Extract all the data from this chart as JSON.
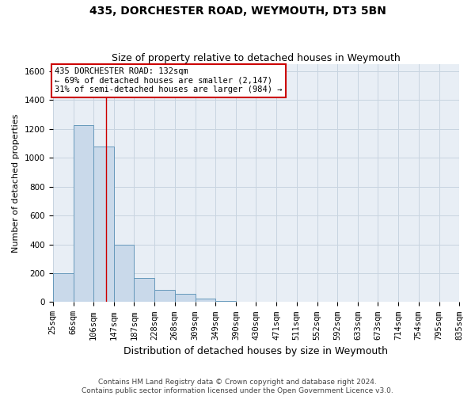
{
  "title": "435, DORCHESTER ROAD, WEYMOUTH, DT3 5BN",
  "subtitle": "Size of property relative to detached houses in Weymouth",
  "xlabel": "Distribution of detached houses by size in Weymouth",
  "ylabel": "Number of detached properties",
  "footer1": "Contains HM Land Registry data © Crown copyright and database right 2024.",
  "footer2": "Contains public sector information licensed under the Open Government Licence v3.0.",
  "bin_edges": [
    25,
    66,
    106,
    147,
    187,
    228,
    268,
    309,
    349,
    390,
    430,
    471,
    511,
    552,
    592,
    633,
    673,
    714,
    754,
    795,
    835
  ],
  "bin_labels": [
    "25sqm",
    "66sqm",
    "106sqm",
    "147sqm",
    "187sqm",
    "228sqm",
    "268sqm",
    "309sqm",
    "349sqm",
    "390sqm",
    "430sqm",
    "471sqm",
    "511sqm",
    "552sqm",
    "592sqm",
    "633sqm",
    "673sqm",
    "714sqm",
    "754sqm",
    "795sqm",
    "835sqm"
  ],
  "bar_values": [
    200,
    1225,
    1075,
    400,
    165,
    85,
    55,
    25,
    10,
    0,
    0,
    0,
    0,
    0,
    0,
    0,
    0,
    0,
    0,
    0
  ],
  "ylim": [
    0,
    1650
  ],
  "yticks": [
    0,
    200,
    400,
    600,
    800,
    1000,
    1200,
    1400,
    1600
  ],
  "bar_color": "#c9d9ea",
  "bar_edge_color": "#6699bb",
  "property_size": 132,
  "annotation_text": "435 DORCHESTER ROAD: 132sqm\n← 69% of detached houses are smaller (2,147)\n31% of semi-detached houses are larger (984) →",
  "annotation_box_color": "#cc0000",
  "vline_color": "#cc0000",
  "grid_color": "#c8d4e0",
  "bg_color": "#e8eef5",
  "title_fontsize": 10,
  "subtitle_fontsize": 9,
  "ylabel_fontsize": 8,
  "xlabel_fontsize": 9,
  "tick_fontsize": 7.5,
  "annotation_fontsize": 7.5,
  "footer_fontsize": 6.5
}
